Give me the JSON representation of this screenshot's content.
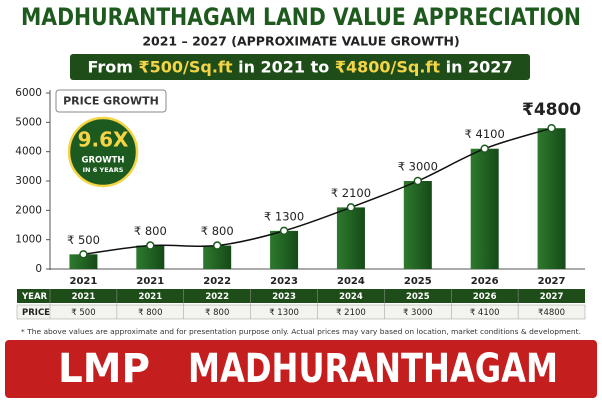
{
  "chart_data": {
    "type": "bar",
    "title": "MADHURANTHAGAM LAND VALUE APPRECIATION",
    "subtitle": "2021 – 2027 (APPROXIMATE VALUE GROWTH)",
    "headline": [
      "From ",
      "₹500/Sq.ft",
      " in 2021 to ",
      "₹4800/Sq.ft",
      " in 2027"
    ],
    "annotations": [
      "PRICE GROWTH",
      "9.6X",
      "GROWTH",
      "IN 6 YEARS"
    ],
    "categories": [
      "2021",
      "2021",
      "2022",
      "2023",
      "2024",
      "2025",
      "2026",
      "2027"
    ],
    "values": [
      500,
      800,
      800,
      1300,
      2100,
      3000,
      4100,
      4800
    ],
    "value_labels": [
      "₹ 500",
      "₹ 800",
      "₹ 800",
      "₹ 1300",
      "₹ 2100",
      "₹ 3000",
      "₹ 4100",
      "₹4800"
    ],
    "color": "#1d5a1f",
    "ylim": [
      0,
      6000
    ],
    "yticks": [
      0,
      1000,
      2000,
      3000,
      4000,
      5000,
      6000
    ]
  },
  "table": {
    "row_headers": [
      "YEAR",
      "PRICE"
    ]
  },
  "footnote": "* The above values are approximate and for presentation purpose only. Actual prices may vary based on location, market conditions & development.",
  "banner": [
    "LMP",
    "MADHURANTHAGAM"
  ]
}
